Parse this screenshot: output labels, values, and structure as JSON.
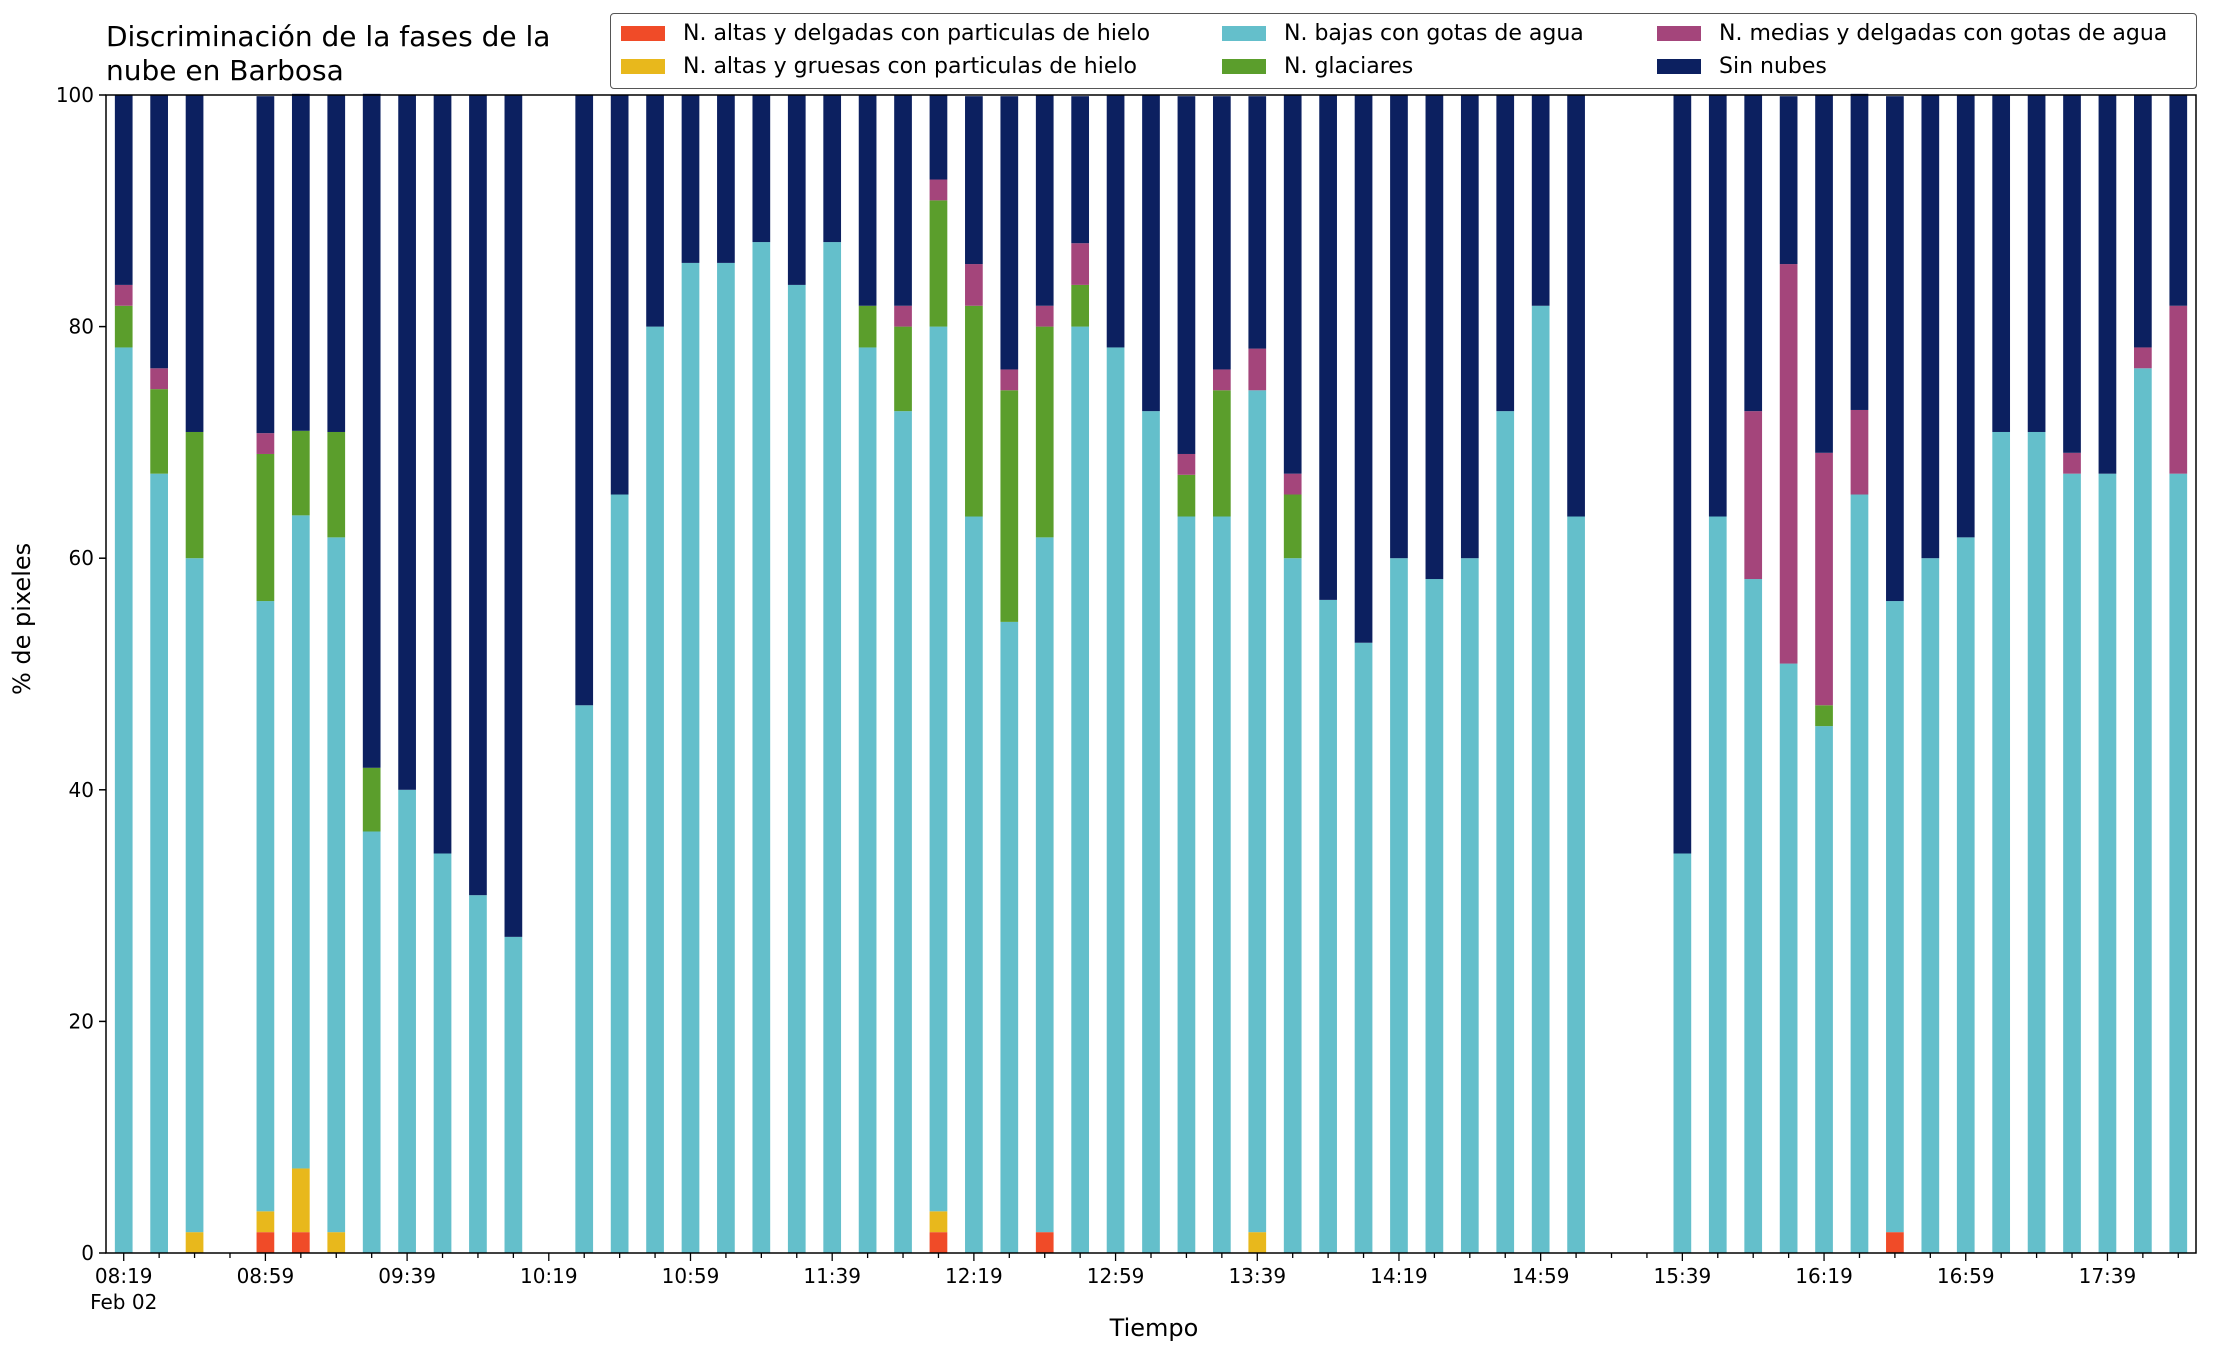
{
  "chart_data": {
    "type": "bar",
    "stacked": true,
    "title": "Discriminación de la fases de la\nnube en Barbosa",
    "xlabel": "Tiempo",
    "ylabel": "% de pixeles",
    "ylim": [
      0,
      100
    ],
    "yticks": [
      0,
      20,
      40,
      60,
      80,
      100
    ],
    "grid": false,
    "legend_position": "top-right",
    "x_start": "08:19",
    "x_step_minutes": 10,
    "xtick_labels": [
      "08:19",
      "08:59",
      "09:39",
      "10:19",
      "10:59",
      "11:39",
      "12:19",
      "12:59",
      "13:39",
      "14:19",
      "14:59",
      "15:39",
      "16:19",
      "16:59",
      "17:39"
    ],
    "date_label": "Feb 02",
    "categories": [
      "08:19",
      "08:29",
      "08:39",
      "08:49",
      "08:59",
      "09:09",
      "09:19",
      "09:29",
      "09:39",
      "09:49",
      "09:59",
      "10:09",
      "10:19",
      "10:29",
      "10:39",
      "10:49",
      "10:59",
      "11:09",
      "11:19",
      "11:29",
      "11:39",
      "11:49",
      "11:59",
      "12:09",
      "12:19",
      "12:29",
      "12:39",
      "12:49",
      "12:59",
      "13:09",
      "13:19",
      "13:29",
      "13:39",
      "13:49",
      "13:59",
      "14:09",
      "14:19",
      "14:29",
      "14:39",
      "14:49",
      "14:59",
      "15:09",
      "15:19",
      "15:29",
      "15:39",
      "15:49",
      "15:59",
      "16:09",
      "16:19",
      "16:29",
      "16:39",
      "16:49",
      "16:59",
      "17:09",
      "17:19",
      "17:29",
      "17:39",
      "17:49",
      "17:59"
    ],
    "series": [
      {
        "name": "N. altas y delgadas con particulas de hielo",
        "color": "#f04b28",
        "values": [
          0,
          0,
          0,
          null,
          1.8,
          1.8,
          0,
          0,
          0,
          0,
          0,
          0,
          null,
          0,
          0,
          0,
          0,
          0,
          0,
          0,
          0,
          0,
          0,
          1.8,
          0,
          0,
          1.8,
          0,
          0,
          0,
          0,
          0,
          0,
          0,
          0,
          0,
          0,
          0,
          0,
          0,
          0,
          0,
          null,
          null,
          0,
          0,
          0,
          0,
          0,
          0,
          1.8,
          0,
          0,
          0,
          0,
          0,
          0,
          0,
          0
        ]
      },
      {
        "name": "N. altas y gruesas con particulas de hielo",
        "color": "#e8b81c",
        "values": [
          0,
          0,
          1.8,
          null,
          1.8,
          5.5,
          1.8,
          0,
          0,
          0,
          0,
          0,
          null,
          0,
          0,
          0,
          0,
          0,
          0,
          0,
          0,
          0,
          0,
          1.8,
          0,
          0,
          0,
          0,
          0,
          0,
          0,
          0,
          1.8,
          0,
          0,
          0,
          0,
          0,
          0,
          0,
          0,
          0,
          null,
          null,
          0,
          0,
          0,
          0,
          0,
          0,
          0,
          0,
          0,
          0,
          0,
          0,
          0,
          0,
          0
        ]
      },
      {
        "name": "N. bajas con gotas de agua",
        "color": "#64bfcb",
        "values": [
          78.2,
          67.3,
          58.2,
          null,
          52.7,
          56.4,
          60,
          36.4,
          40,
          34.5,
          30.9,
          27.3,
          null,
          47.3,
          65.5,
          80,
          85.5,
          85.5,
          87.3,
          83.6,
          87.3,
          78.2,
          72.7,
          76.4,
          63.6,
          54.5,
          60,
          80,
          78.2,
          72.7,
          63.6,
          63.6,
          72.7,
          60,
          56.4,
          52.7,
          60,
          58.2,
          60,
          72.7,
          81.8,
          63.6,
          null,
          null,
          34.5,
          63.6,
          58.2,
          50.9,
          45.5,
          65.5,
          54.5,
          60,
          61.8,
          70.9,
          70.9,
          67.3,
          67.3,
          76.4,
          67.3
        ]
      },
      {
        "name": "N. glaciares",
        "color": "#5b9e2c",
        "values": [
          3.6,
          7.3,
          10.9,
          null,
          12.7,
          7.3,
          9.1,
          5.5,
          0,
          0,
          0,
          0,
          null,
          0,
          0,
          0,
          0,
          0,
          0,
          0,
          0,
          3.6,
          7.3,
          10.9,
          18.2,
          20,
          18.2,
          3.6,
          0,
          0,
          3.6,
          10.9,
          0,
          5.5,
          0,
          0,
          0,
          0,
          0,
          0,
          0,
          0,
          null,
          null,
          0,
          0,
          0,
          0,
          1.8,
          0,
          0,
          0,
          0,
          0,
          0,
          0,
          0,
          0,
          0
        ]
      },
      {
        "name": "N. medias y delgadas con gotas de agua",
        "color": "#a4457b",
        "values": [
          1.8,
          1.8,
          0,
          null,
          1.8,
          0,
          0,
          0,
          0,
          0,
          0,
          0,
          null,
          0,
          0,
          0,
          0,
          0,
          0,
          0,
          0,
          0,
          1.8,
          1.8,
          3.6,
          1.8,
          1.8,
          3.6,
          0,
          0,
          1.8,
          1.8,
          3.6,
          1.8,
          0,
          0,
          0,
          0,
          0,
          0,
          0,
          0,
          null,
          null,
          0,
          0,
          14.5,
          34.5,
          21.8,
          7.3,
          0,
          0,
          0,
          0,
          0,
          1.8,
          0,
          1.8,
          14.5
        ]
      },
      {
        "name": "Sin nubes",
        "color": "#0c2060",
        "values": [
          16.4,
          23.6,
          29.1,
          null,
          29.1,
          29.1,
          29.1,
          58.2,
          60,
          65.5,
          69.1,
          72.7,
          null,
          52.7,
          34.5,
          20,
          14.5,
          14.5,
          12.7,
          16.4,
          12.7,
          18.2,
          18.2,
          7.3,
          14.5,
          23.6,
          18.2,
          12.7,
          21.8,
          27.3,
          30.9,
          23.6,
          21.8,
          32.7,
          43.6,
          47.3,
          40,
          41.8,
          40,
          27.3,
          18.2,
          36.4,
          null,
          null,
          65.5,
          36.4,
          27.3,
          14.5,
          30.9,
          27.3,
          43.6,
          40,
          38.2,
          29.1,
          29.1,
          30.9,
          32.7,
          21.8,
          18.2
        ]
      }
    ]
  }
}
